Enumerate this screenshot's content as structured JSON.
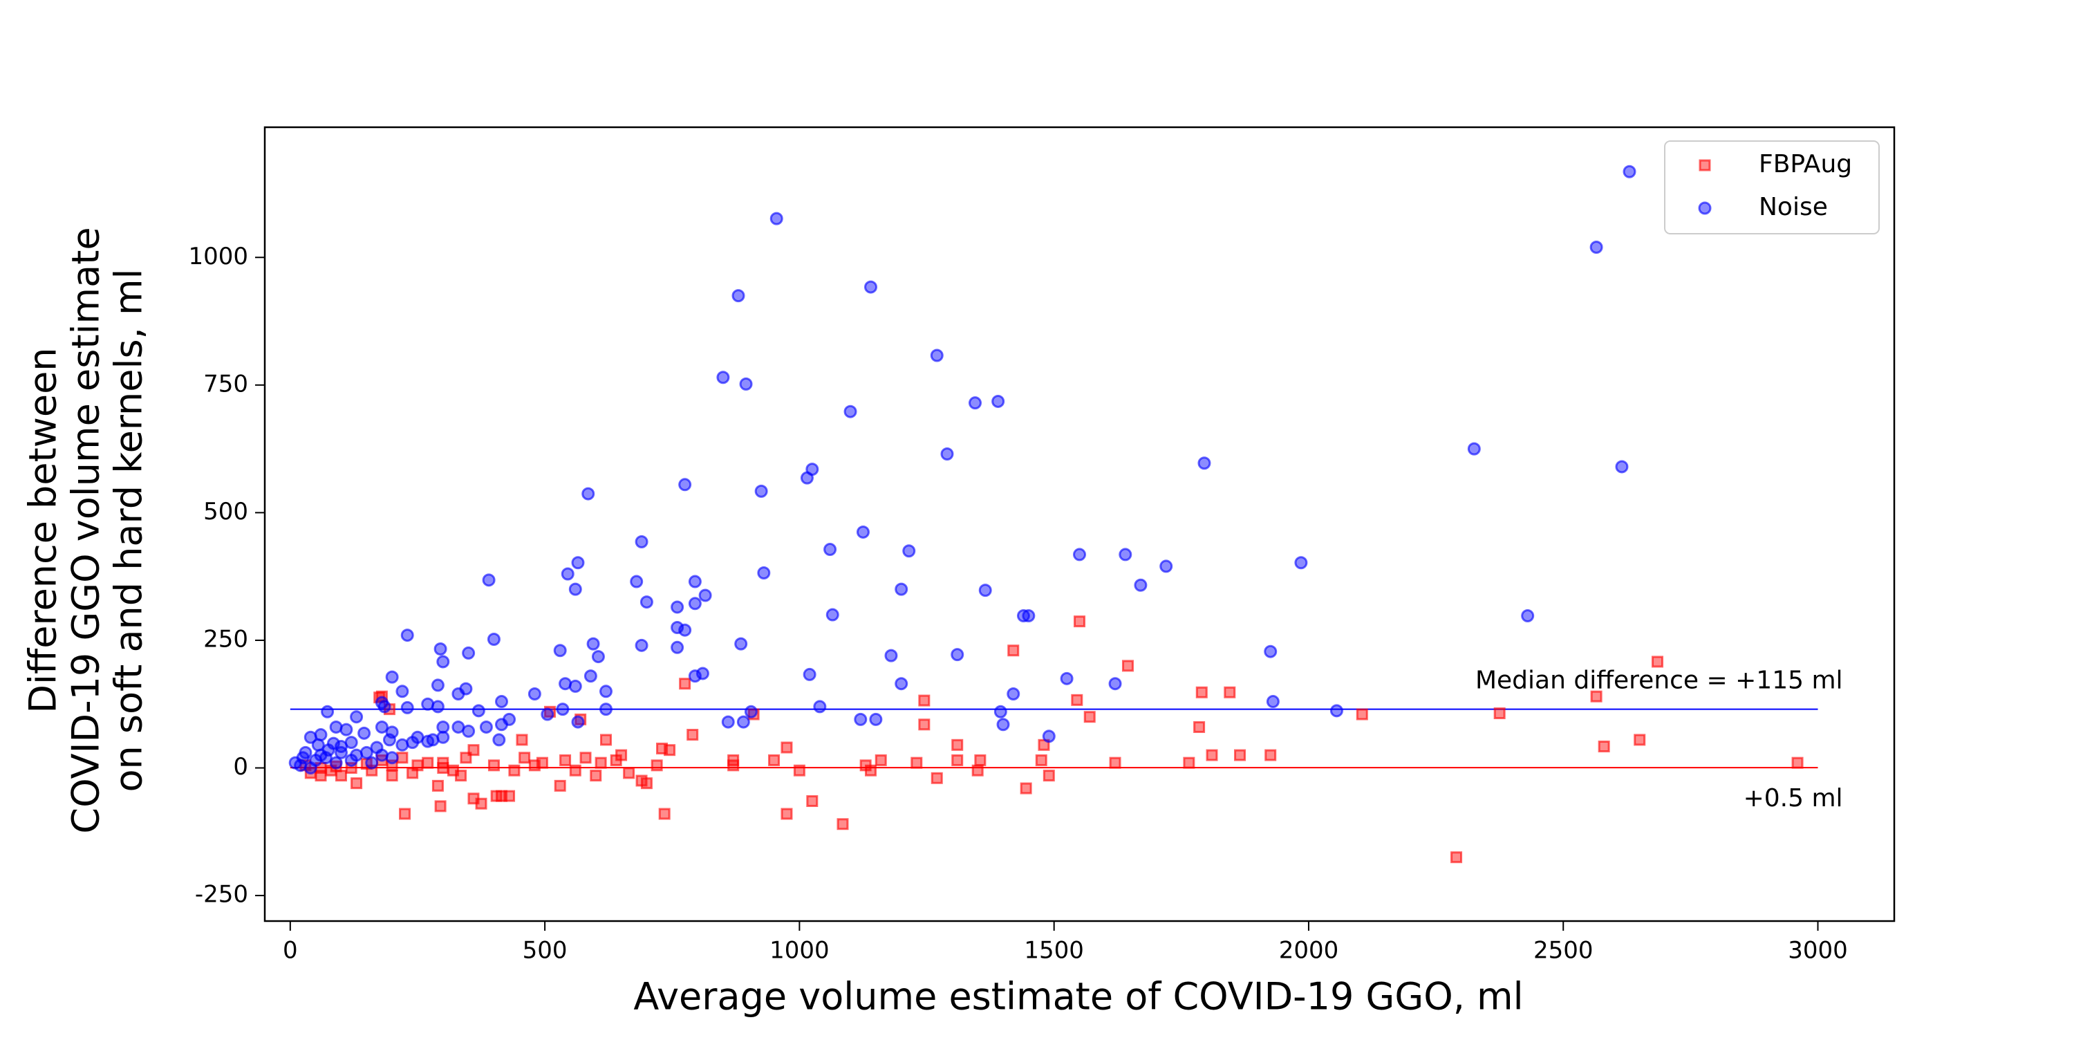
{
  "chart_data": {
    "type": "scatter",
    "xlabel": "Average volume estimate of COVID-19 GGO, ml",
    "ylabel": [
      "Difference between",
      "COVID-19 GGO volume estimate",
      "on soft and hard kernels, ml"
    ],
    "xlim": [
      -50,
      3150
    ],
    "ylim": [
      -300,
      1255
    ],
    "xticks": [
      0,
      500,
      1000,
      1500,
      2000,
      2500,
      3000
    ],
    "yticks": [
      -250,
      0,
      250,
      500,
      750,
      1000
    ],
    "legend": "upper right",
    "hlines": [
      {
        "y": 115,
        "xmin": 0,
        "xmax": 3000,
        "color": "#0000ff",
        "label": "Median difference = +115 ml",
        "label_side": "above"
      },
      {
        "y": 0.5,
        "xmin": 0,
        "xmax": 3000,
        "color": "#ff0000",
        "label": "+0.5 ml",
        "label_side": "below"
      }
    ],
    "series": [
      {
        "name": "FBPAug",
        "color": "#ff0000",
        "marker": "square",
        "x": [
          2290,
          1085,
          735,
          975,
          225,
          1025,
          295,
          375,
          360,
          1445,
          415,
          430,
          405,
          530,
          290,
          130,
          700,
          690,
          1270,
          1490,
          600,
          665,
          200,
          240,
          335,
          60,
          40,
          100,
          160,
          80,
          320,
          440,
          560,
          1000,
          1140,
          1350,
          1810,
          1865,
          1925,
          1620,
          1765,
          1550,
          2685,
          1420,
          1645,
          775,
          1790,
          1845,
          2565,
          1245,
          1545,
          1570,
          2105,
          2375,
          910,
          1785,
          1245,
          790,
          2650,
          2580,
          1480,
          620,
          455,
          730,
          745,
          975,
          1310,
          175,
          180,
          195,
          570,
          510,
          2960,
          870,
          950,
          1230,
          1160,
          1130,
          1310,
          1355,
          1475,
          720,
          870,
          460,
          540,
          580,
          650,
          640,
          480,
          495,
          360,
          345,
          300,
          250,
          220,
          270,
          180,
          150,
          120,
          200,
          400,
          60,
          30,
          90,
          610,
          300
        ],
        "y": [
          -175,
          -110,
          -90,
          -90,
          -90,
          -65,
          -75,
          -70,
          -60,
          -40,
          -55,
          -55,
          -55,
          -35,
          -35,
          -30,
          -30,
          -25,
          -20,
          -15,
          -15,
          -10,
          -15,
          -10,
          -15,
          -15,
          -10,
          -15,
          -5,
          -5,
          -5,
          -5,
          -5,
          -5,
          -5,
          -5,
          25,
          25,
          25,
          10,
          10,
          287,
          208,
          230,
          200,
          165,
          148,
          148,
          140,
          132,
          133,
          100,
          105,
          107,
          105,
          80,
          85,
          65,
          55,
          42,
          45,
          55,
          55,
          38,
          35,
          40,
          45,
          138,
          140,
          115,
          95,
          110,
          10,
          15,
          15,
          10,
          15,
          5,
          15,
          15,
          15,
          5,
          5,
          20,
          15,
          20,
          25,
          15,
          5,
          10,
          35,
          20,
          10,
          5,
          20,
          10,
          15,
          8,
          0,
          5,
          5,
          0,
          5,
          3,
          10,
          0
        ]
      },
      {
        "name": "Noise",
        "color": "#0000ff",
        "marker": "circle",
        "x": [
          2630,
          2565,
          955,
          1140,
          880,
          1270,
          850,
          895,
          1345,
          1390,
          1100,
          1290,
          2325,
          2615,
          1795,
          1025,
          1015,
          775,
          925,
          585,
          1125,
          690,
          1060,
          1215,
          1550,
          1640,
          1985,
          565,
          1720,
          545,
          930,
          390,
          795,
          680,
          1670,
          560,
          1200,
          1365,
          815,
          700,
          795,
          760,
          1065,
          1440,
          1450,
          2430,
          760,
          775,
          230,
          400,
          595,
          885,
          690,
          760,
          295,
          1180,
          1925,
          1310,
          605,
          300,
          350,
          530,
          590,
          795,
          810,
          1020,
          200,
          1420,
          1525,
          1620,
          1200,
          560,
          290,
          345,
          540,
          620,
          220,
          330,
          480,
          415,
          1930,
          180,
          270,
          290,
          185,
          1040,
          230,
          535,
          620,
          370,
          2055,
          1395,
          905,
          73,
          130,
          505,
          1120,
          1150,
          860,
          890,
          565,
          1400,
          430,
          300,
          180,
          415,
          385,
          330,
          90,
          200,
          110,
          145,
          60,
          40,
          250,
          280,
          300,
          410,
          1490,
          350,
          240,
          270,
          195,
          120,
          85,
          55,
          30,
          100,
          150,
          180,
          70,
          120,
          160,
          20,
          10,
          50,
          90,
          200,
          40,
          130,
          170,
          75,
          100,
          60,
          220,
          25
        ],
        "y": [
          1168,
          1020,
          1076,
          942,
          925,
          808,
          765,
          752,
          715,
          718,
          698,
          615,
          625,
          590,
          597,
          585,
          568,
          555,
          542,
          537,
          462,
          443,
          428,
          425,
          418,
          418,
          402,
          402,
          395,
          380,
          382,
          368,
          365,
          365,
          358,
          350,
          350,
          348,
          338,
          325,
          322,
          315,
          300,
          298,
          298,
          298,
          275,
          270,
          260,
          252,
          243,
          243,
          240,
          236,
          233,
          220,
          228,
          222,
          218,
          208,
          225,
          230,
          180,
          180,
          185,
          183,
          178,
          145,
          175,
          165,
          165,
          160,
          162,
          155,
          165,
          150,
          150,
          145,
          145,
          130,
          130,
          128,
          125,
          120,
          120,
          120,
          118,
          115,
          115,
          112,
          112,
          110,
          110,
          110,
          100,
          105,
          95,
          95,
          90,
          90,
          90,
          85,
          95,
          80,
          80,
          85,
          80,
          80,
          80,
          70,
          75,
          68,
          65,
          60,
          60,
          55,
          60,
          55,
          62,
          72,
          50,
          52,
          55,
          50,
          48,
          45,
          30,
          30,
          30,
          25,
          20,
          15,
          10,
          5,
          10,
          15,
          10,
          20,
          0,
          25,
          40,
          35,
          42,
          25,
          45,
          20
        ]
      }
    ]
  }
}
